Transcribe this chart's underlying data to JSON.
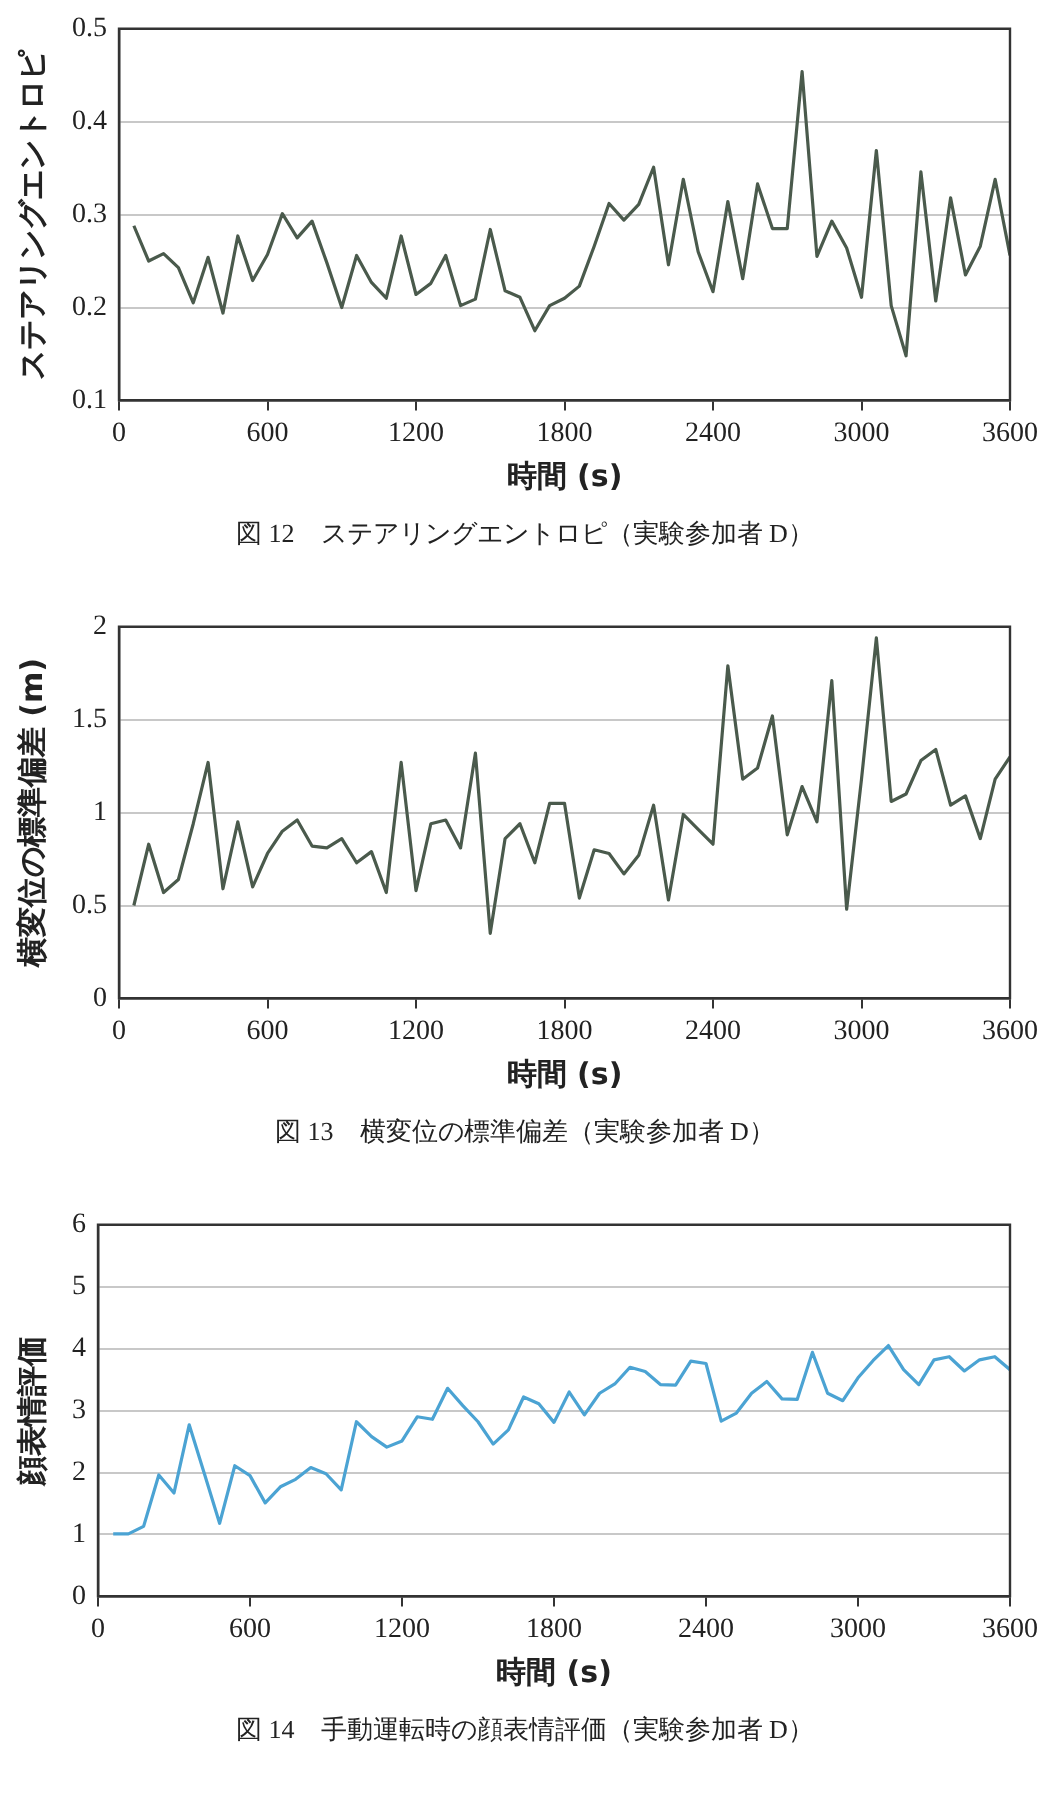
{
  "chart_data": [
    {
      "type": "line",
      "xlabel": "時間 (s)",
      "ylabel": "ステアリングエントロピ",
      "annotations": [
        "図 12　ステアリングエントロピ（実験参加者 D）"
      ],
      "x": [
        60,
        120,
        180,
        240,
        300,
        360,
        420,
        480,
        540,
        600,
        660,
        720,
        780,
        840,
        900,
        960,
        1020,
        1080,
        1140,
        1200,
        1260,
        1320,
        1380,
        1440,
        1500,
        1560,
        1620,
        1680,
        1740,
        1800,
        1860,
        1920,
        1980,
        2040,
        2100,
        2160,
        2220,
        2280,
        2340,
        2400,
        2460,
        2520,
        2580,
        2640,
        2700,
        2760,
        2820,
        2880,
        2940,
        3000,
        3060,
        3120,
        3180,
        3240,
        3300,
        3360,
        3420,
        3480,
        3540,
        3600
      ],
      "series": [
        {
          "color": "#4a5a4c",
          "values": [
            0.288,
            0.25,
            0.258,
            0.243,
            0.205,
            0.254,
            0.194,
            0.277,
            0.229,
            0.257,
            0.301,
            0.275,
            0.293,
            0.248,
            0.2,
            0.256,
            0.227,
            0.21,
            0.277,
            0.214,
            0.226,
            0.256,
            0.202,
            0.209,
            0.284,
            0.218,
            0.211,
            0.175,
            0.202,
            0.21,
            0.223,
            0.266,
            0.312,
            0.294,
            0.311,
            0.351,
            0.246,
            0.338,
            0.26,
            0.217,
            0.314,
            0.231,
            0.333,
            0.285,
            0.285,
            0.454,
            0.255,
            0.293,
            0.264,
            0.211,
            0.369,
            0.202,
            0.148,
            0.346,
            0.207,
            0.318,
            0.235,
            0.266,
            0.338,
            0.256
          ]
        }
      ],
      "xlim": [
        0,
        3600
      ],
      "xticks": [
        0,
        600,
        1200,
        1800,
        2400,
        3000,
        3600
      ],
      "ylim": [
        0.1,
        0.5
      ],
      "yticks": [
        0.1,
        0.2,
        0.3,
        0.4,
        0.5
      ],
      "grid": "y",
      "marker": "none",
      "line_style": "solid"
    },
    {
      "type": "line",
      "xlabel": "時間 (s)",
      "ylabel": "横変位の標準偏差 (m)",
      "annotations": [
        "図 13　横変位の標準偏差（実験参加者 D）"
      ],
      "x": [
        60,
        120,
        180,
        240,
        300,
        360,
        420,
        480,
        540,
        600,
        660,
        720,
        780,
        840,
        900,
        960,
        1020,
        1080,
        1140,
        1200,
        1260,
        1320,
        1380,
        1440,
        1500,
        1560,
        1620,
        1680,
        1740,
        1800,
        1860,
        1920,
        1980,
        2040,
        2100,
        2160,
        2220,
        2280,
        2340,
        2400,
        2460,
        2520,
        2580,
        2640,
        2700,
        2760,
        2820,
        2880,
        2940,
        3000,
        3060,
        3120,
        3180,
        3240,
        3300,
        3360,
        3420,
        3480,
        3540,
        3600
      ],
      "series": [
        {
          "color": "#4a5a4c",
          "values": [
            0.5,
            0.83,
            0.57,
            0.64,
            0.94,
            1.27,
            0.59,
            0.95,
            0.6,
            0.78,
            0.9,
            0.96,
            0.82,
            0.81,
            0.86,
            0.73,
            0.79,
            0.57,
            1.27,
            0.58,
            0.94,
            0.96,
            0.81,
            1.32,
            0.35,
            0.86,
            0.94,
            0.73,
            1.05,
            1.05,
            0.54,
            0.8,
            0.78,
            0.67,
            0.77,
            1.04,
            0.53,
            0.99,
            0.91,
            0.83,
            1.79,
            1.18,
            1.24,
            1.52,
            0.88,
            1.14,
            0.95,
            1.71,
            0.48,
            1.18,
            1.94,
            1.06,
            1.1,
            1.28,
            1.34,
            1.04,
            1.09,
            0.86,
            1.18,
            1.3
          ]
        }
      ],
      "xlim": [
        0,
        3600
      ],
      "xticks": [
        0,
        600,
        1200,
        1800,
        2400,
        3000,
        3600
      ],
      "ylim": [
        0,
        2
      ],
      "yticks": [
        0,
        0.5,
        1,
        1.5,
        2
      ],
      "grid": "y",
      "marker": "none",
      "line_style": "solid"
    },
    {
      "type": "line",
      "xlabel": "時間 (s)",
      "ylabel": "顔表情評価",
      "annotations": [
        "図 14　手動運転時の顔表情評価（実験参加者 D）"
      ],
      "x": [
        60,
        120,
        180,
        240,
        300,
        360,
        420,
        480,
        540,
        600,
        660,
        720,
        780,
        840,
        900,
        960,
        1020,
        1080,
        1140,
        1200,
        1260,
        1320,
        1380,
        1440,
        1500,
        1560,
        1620,
        1680,
        1740,
        1800,
        1860,
        1920,
        1980,
        2040,
        2100,
        2160,
        2220,
        2280,
        2340,
        2400,
        2460,
        2520,
        2580,
        2640,
        2700,
        2760,
        2820,
        2880,
        2940,
        3000,
        3060,
        3120,
        3180,
        3240,
        3300,
        3360,
        3420,
        3480,
        3540,
        3600
      ],
      "series": [
        {
          "color": "#4ba3d3",
          "values": [
            1.01,
            1.01,
            1.13,
            1.96,
            1.67,
            2.77,
            1.98,
            1.18,
            2.11,
            1.95,
            1.51,
            1.77,
            1.89,
            2.08,
            1.98,
            1.72,
            2.82,
            2.58,
            2.41,
            2.51,
            2.9,
            2.86,
            3.36,
            3.08,
            2.82,
            2.46,
            2.69,
            3.22,
            3.11,
            2.81,
            3.3,
            2.93,
            3.28,
            3.43,
            3.7,
            3.63,
            3.42,
            3.41,
            3.8,
            3.76,
            2.83,
            2.96,
            3.28,
            3.47,
            3.19,
            3.18,
            3.94,
            3.28,
            3.16,
            3.53,
            3.81,
            4.05,
            3.66,
            3.42,
            3.82,
            3.87,
            3.64,
            3.82,
            3.87,
            3.66
          ]
        }
      ],
      "xlim": [
        0,
        3600
      ],
      "xticks": [
        0,
        600,
        1200,
        1800,
        2400,
        3000,
        3600
      ],
      "ylim": [
        0,
        6
      ],
      "yticks": [
        0,
        1,
        2,
        3,
        4,
        5,
        6
      ],
      "grid": "y",
      "marker": "none",
      "line_style": "solid"
    }
  ]
}
